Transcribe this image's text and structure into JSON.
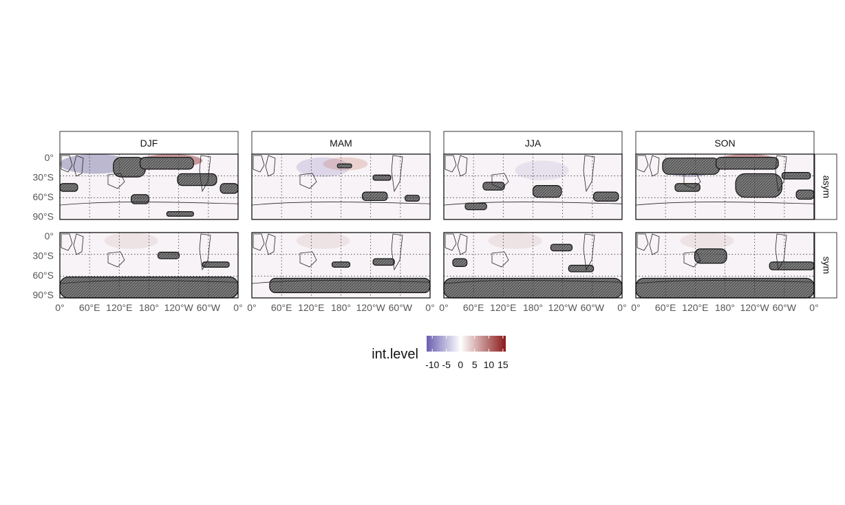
{
  "figure": {
    "columns": [
      "DJF",
      "MAM",
      "JJA",
      "SON"
    ],
    "rows": [
      "asym",
      "sym"
    ],
    "y_tick_labels": [
      "0°",
      "30°S",
      "60°S",
      "90°S"
    ],
    "x_tick_labels": [
      "0°",
      "60°E",
      "120°E",
      "180°",
      "120°W",
      "60°W",
      "0°"
    ]
  },
  "legend": {
    "title": "int.level",
    "tick_labels": [
      "-10",
      "-5",
      "0",
      "5",
      "10",
      "15"
    ],
    "colors": {
      "low": "#6a5fb0",
      "mid": "#ffffff",
      "high": "#8b1a1a"
    },
    "range": [
      -12,
      16
    ]
  },
  "style": {
    "significance_fill": "#555555",
    "grid_color": "#333333",
    "panel_border": "#000000"
  }
}
